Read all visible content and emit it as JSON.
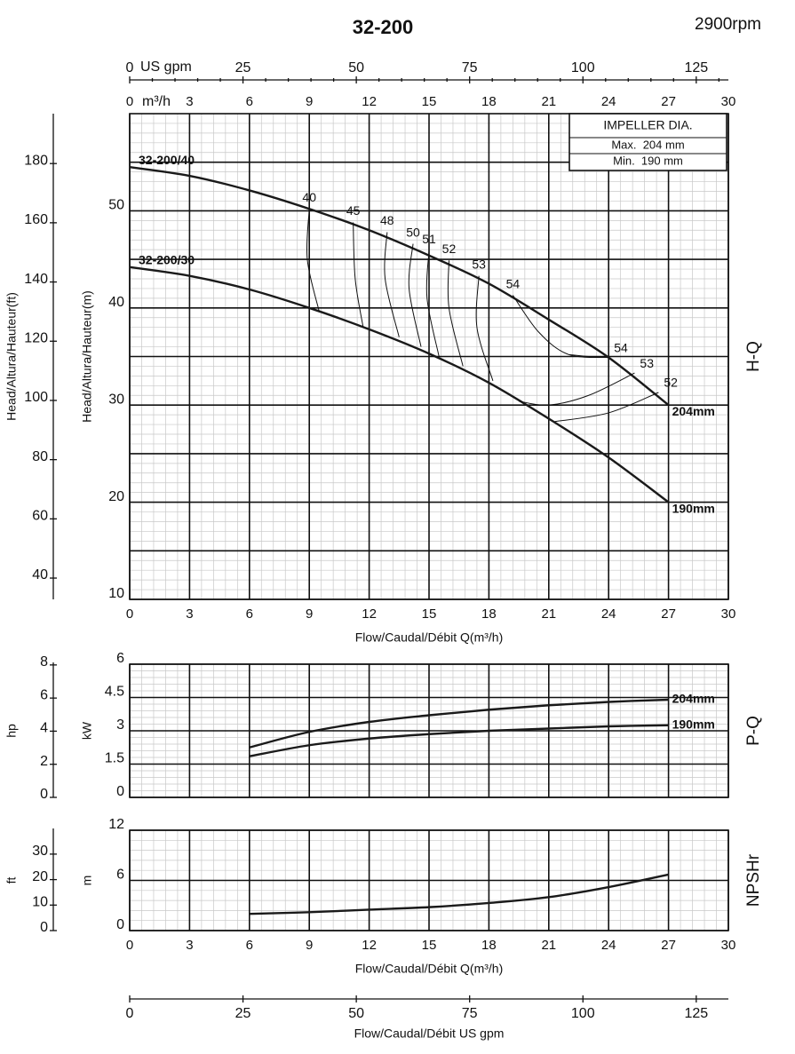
{
  "chart_data": [
    {
      "type": "line",
      "title": "32-200",
      "subtitle": "2900rpm",
      "panel_label": "H-Q",
      "xlabel": "Flow/Caudal/Débit Q(m³/h)",
      "ylabel": "Head/Altura/Hauteur(m)",
      "y2label": "Head/Altura/Hauteur(ft)",
      "top_axis_label": "m³/h",
      "gpm_axis_label": "US gpm",
      "xlim": [
        0,
        30
      ],
      "xticks": [
        0,
        3,
        6,
        9,
        12,
        15,
        18,
        21,
        24,
        27,
        30
      ],
      "gpm_lim": [
        0,
        132.09
      ],
      "gpm_ticks": [
        0,
        25,
        50,
        75,
        100,
        125
      ],
      "ylim": [
        10,
        60
      ],
      "yticks": [
        10,
        20,
        30,
        40,
        50
      ],
      "y2lim": [
        32.81,
        196.85
      ],
      "y2ticks": [
        40,
        60,
        80,
        100,
        120,
        140,
        160,
        180
      ],
      "grid": true,
      "grid_halves": true,
      "xtick_labels": true,
      "legend_title": "IMPELLER DIA.",
      "legend_entries": [
        "Max.  204 mm",
        "Min.  190 mm"
      ],
      "x": [
        0,
        3,
        6,
        9,
        12,
        15,
        18,
        21,
        24,
        27
      ],
      "series": [
        {
          "name": "204mm",
          "model": "32-200/40",
          "color": "#1a1a1a",
          "values": [
            54.5,
            53.6,
            52.1,
            50.2,
            48.0,
            45.4,
            42.5,
            38.8,
            34.9,
            30.0
          ]
        },
        {
          "name": "190mm",
          "model": "32-200/30",
          "color": "#1a1a1a",
          "values": [
            44.2,
            43.3,
            41.9,
            40.0,
            37.8,
            35.3,
            32.3,
            28.6,
            24.6,
            20.0
          ]
        }
      ],
      "contours": [
        {
          "label": "40",
          "q": [
            9.0,
            8.9,
            9.5
          ],
          "h": [
            50.2,
            45.0,
            39.6
          ]
        },
        {
          "label": "45",
          "q": [
            11.2,
            11.3,
            11.7
          ],
          "h": [
            48.8,
            43.0,
            38.0
          ]
        },
        {
          "label": "48",
          "q": [
            12.9,
            12.8,
            13.5
          ],
          "h": [
            47.8,
            43.0,
            37.0
          ]
        },
        {
          "label": "50",
          "q": [
            14.2,
            14.0,
            14.6
          ],
          "h": [
            46.6,
            42.0,
            36.0
          ]
        },
        {
          "label": "51",
          "q": [
            15.0,
            14.9,
            15.5
          ],
          "h": [
            45.9,
            41.0,
            35.0
          ]
        },
        {
          "label": "52",
          "q": [
            16.0,
            16.0,
            16.7
          ],
          "h": [
            44.9,
            40.0,
            34.0
          ]
        },
        {
          "label": "53",
          "q": [
            17.5,
            17.4,
            18.2
          ],
          "h": [
            43.3,
            38.0,
            32.5
          ]
        },
        {
          "label": "54",
          "q": [
            19.2,
            20.5,
            22.0,
            24.0
          ],
          "h": [
            41.3,
            37.5,
            35.2,
            34.9
          ]
        },
        {
          "label": "54",
          "q": [
            24.0,
            23.0,
            22.0
          ],
          "h": [
            34.9,
            35.0,
            35.2
          ]
        },
        {
          "label": "53",
          "q": [
            25.3,
            23.0,
            21.0,
            19.5
          ],
          "h": [
            33.3,
            31.0,
            30.0,
            30.4
          ]
        },
        {
          "label": "52",
          "q": [
            26.5,
            24.0,
            21.3
          ],
          "h": [
            31.3,
            29.2,
            28.3
          ]
        }
      ]
    },
    {
      "type": "line",
      "panel_label": "P-Q",
      "ylabel": "kW",
      "y2label": "hp",
      "xlim": [
        0,
        30
      ],
      "xticks": [
        0,
        3,
        6,
        9,
        12,
        15,
        18,
        21,
        24,
        27,
        30
      ],
      "ylim": [
        0,
        6
      ],
      "yticks": [
        0,
        1.5,
        3,
        4.5,
        6
      ],
      "y2lim": [
        0,
        8.046
      ],
      "y2ticks": [
        0,
        2,
        4,
        6,
        8
      ],
      "grid": true,
      "xtick_labels": false,
      "x": [
        6,
        9,
        12,
        15,
        18,
        21,
        24,
        27
      ],
      "series": [
        {
          "name": "204mm",
          "color": "#1a1a1a",
          "values": [
            2.25,
            2.95,
            3.4,
            3.7,
            3.95,
            4.15,
            4.3,
            4.4
          ]
        },
        {
          "name": "190mm",
          "color": "#1a1a1a",
          "values": [
            1.85,
            2.35,
            2.65,
            2.85,
            3.0,
            3.1,
            3.2,
            3.25
          ]
        }
      ]
    },
    {
      "type": "line",
      "panel_label": "NPSHr",
      "ylabel": "m",
      "y2label": "ft",
      "xlabel": "Flow/Caudal/Débit Q(m³/h)",
      "gpm_axis_label": "Flow/Caudal/Débit  US gpm",
      "xlim": [
        0,
        30
      ],
      "xticks": [
        0,
        3,
        6,
        9,
        12,
        15,
        18,
        21,
        24,
        27,
        30
      ],
      "gpm_lim": [
        0,
        132.09
      ],
      "gpm_ticks": [
        0,
        25,
        50,
        75,
        100,
        125
      ],
      "ylim": [
        0,
        12
      ],
      "yticks": [
        0,
        6,
        12
      ],
      "y2lim": [
        0,
        39.37
      ],
      "y2ticks": [
        0,
        10,
        20,
        30
      ],
      "grid": true,
      "xtick_labels": true,
      "x": [
        6,
        9,
        12,
        15,
        18,
        21,
        24,
        27
      ],
      "series": [
        {
          "color": "#1a1a1a",
          "values": [
            2.0,
            2.2,
            2.5,
            2.8,
            3.3,
            4.0,
            5.2,
            6.7
          ]
        }
      ]
    }
  ]
}
